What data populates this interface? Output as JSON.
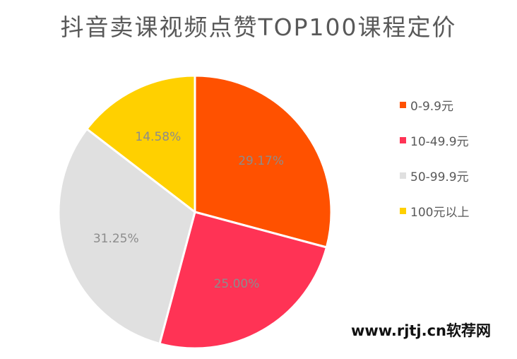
{
  "chart_data": {
    "type": "pie",
    "title": "抖音卖课视频点赞TOP100课程定价",
    "slices": [
      {
        "name": "0-9.9元",
        "value": 29.17,
        "label": "29.17%",
        "color": "#FF5100"
      },
      {
        "name": "10-49.9元",
        "value": 25.0,
        "label": "25.00%",
        "color": "#FF3355"
      },
      {
        "name": "50-99.9元",
        "value": 31.25,
        "label": "31.25%",
        "color": "#E0E0E0"
      },
      {
        "name": "100元以上",
        "value": 14.58,
        "label": "14.58%",
        "color": "#FFD000"
      }
    ],
    "start_angle": "12 o'clock",
    "direction": "clockwise",
    "legend_position": "right"
  },
  "watermark": "www.rjtj.cn软荐网"
}
